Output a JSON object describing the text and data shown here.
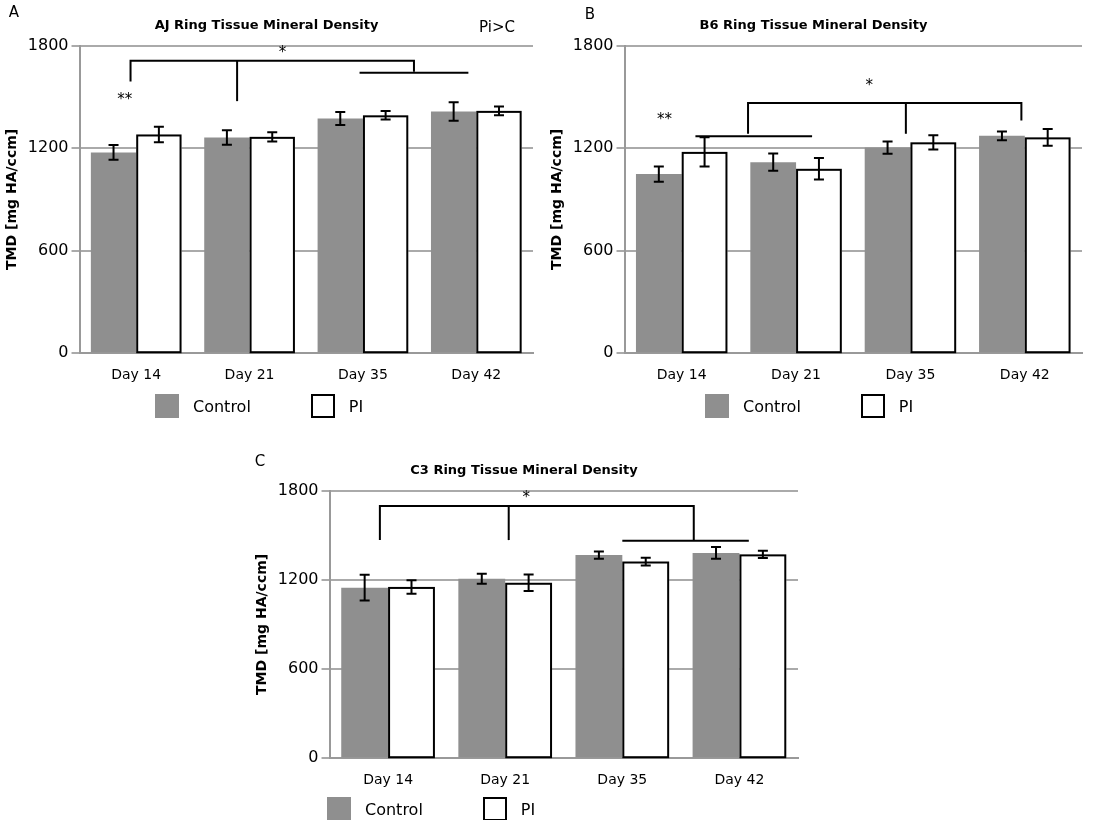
{
  "chart_data": [
    {
      "type": "bar",
      "title": "AJ Ring Tissue Mineral Density",
      "ylabel": "TMD [mg HA/ccm]",
      "categories": [
        "Day 14",
        "Day 21",
        "Day 35",
        "Day 42"
      ],
      "series": [
        {
          "name": "Control",
          "color": "#8f8f8f",
          "values": [
            1175,
            1262,
            1373,
            1414
          ],
          "errors": [
            43,
            42,
            38,
            54
          ]
        },
        {
          "name": "PI",
          "color": "#ffffff",
          "values": [
            1280,
            1266,
            1392,
            1418
          ],
          "errors": [
            45,
            27,
            25,
            25
          ]
        }
      ],
      "ylim": [
        0,
        1800
      ],
      "yticks": [
        0,
        600,
        1200,
        1800
      ],
      "grid": "y",
      "legend": "bottom",
      "annotations": [
        "A",
        "Pi>C",
        "**",
        "*"
      ]
    },
    {
      "type": "bar",
      "title": "B6 Ring Tissue Mineral Density",
      "ylabel": "TMD [mg HA/ccm]",
      "categories": [
        "Day 14",
        "Day 21",
        "Day 35",
        "Day 42"
      ],
      "series": [
        {
          "name": "Control",
          "color": "#8f8f8f",
          "values": [
            1048,
            1118,
            1203,
            1272
          ],
          "errors": [
            44,
            50,
            36,
            26
          ]
        },
        {
          "name": "PI",
          "color": "#ffffff",
          "values": [
            1178,
            1079,
            1234,
            1263
          ],
          "errors": [
            85,
            63,
            42,
            49
          ]
        }
      ],
      "ylim": [
        0,
        1800
      ],
      "yticks": [
        0,
        600,
        1200,
        1800
      ],
      "grid": "y",
      "legend": "bottom",
      "annotations": [
        "B",
        "**",
        "*"
      ]
    },
    {
      "type": "bar",
      "title": "C3 Ring Tissue Mineral Density",
      "ylabel": "TMD [mg HA/ccm]",
      "categories": [
        "Day 14",
        "Day 21",
        "Day 35",
        "Day 42"
      ],
      "series": [
        {
          "name": "Control",
          "color": "#8f8f8f",
          "values": [
            1147,
            1207,
            1366,
            1381
          ],
          "errors": [
            87,
            34,
            24,
            40
          ]
        },
        {
          "name": "PI",
          "color": "#ffffff",
          "values": [
            1152,
            1180,
            1323,
            1371
          ],
          "errors": [
            45,
            55,
            26,
            25
          ]
        }
      ],
      "ylim": [
        0,
        1800
      ],
      "yticks": [
        0,
        600,
        1200,
        1800
      ],
      "grid": "y",
      "legend": "bottom",
      "annotations": [
        "C",
        "*"
      ]
    }
  ]
}
